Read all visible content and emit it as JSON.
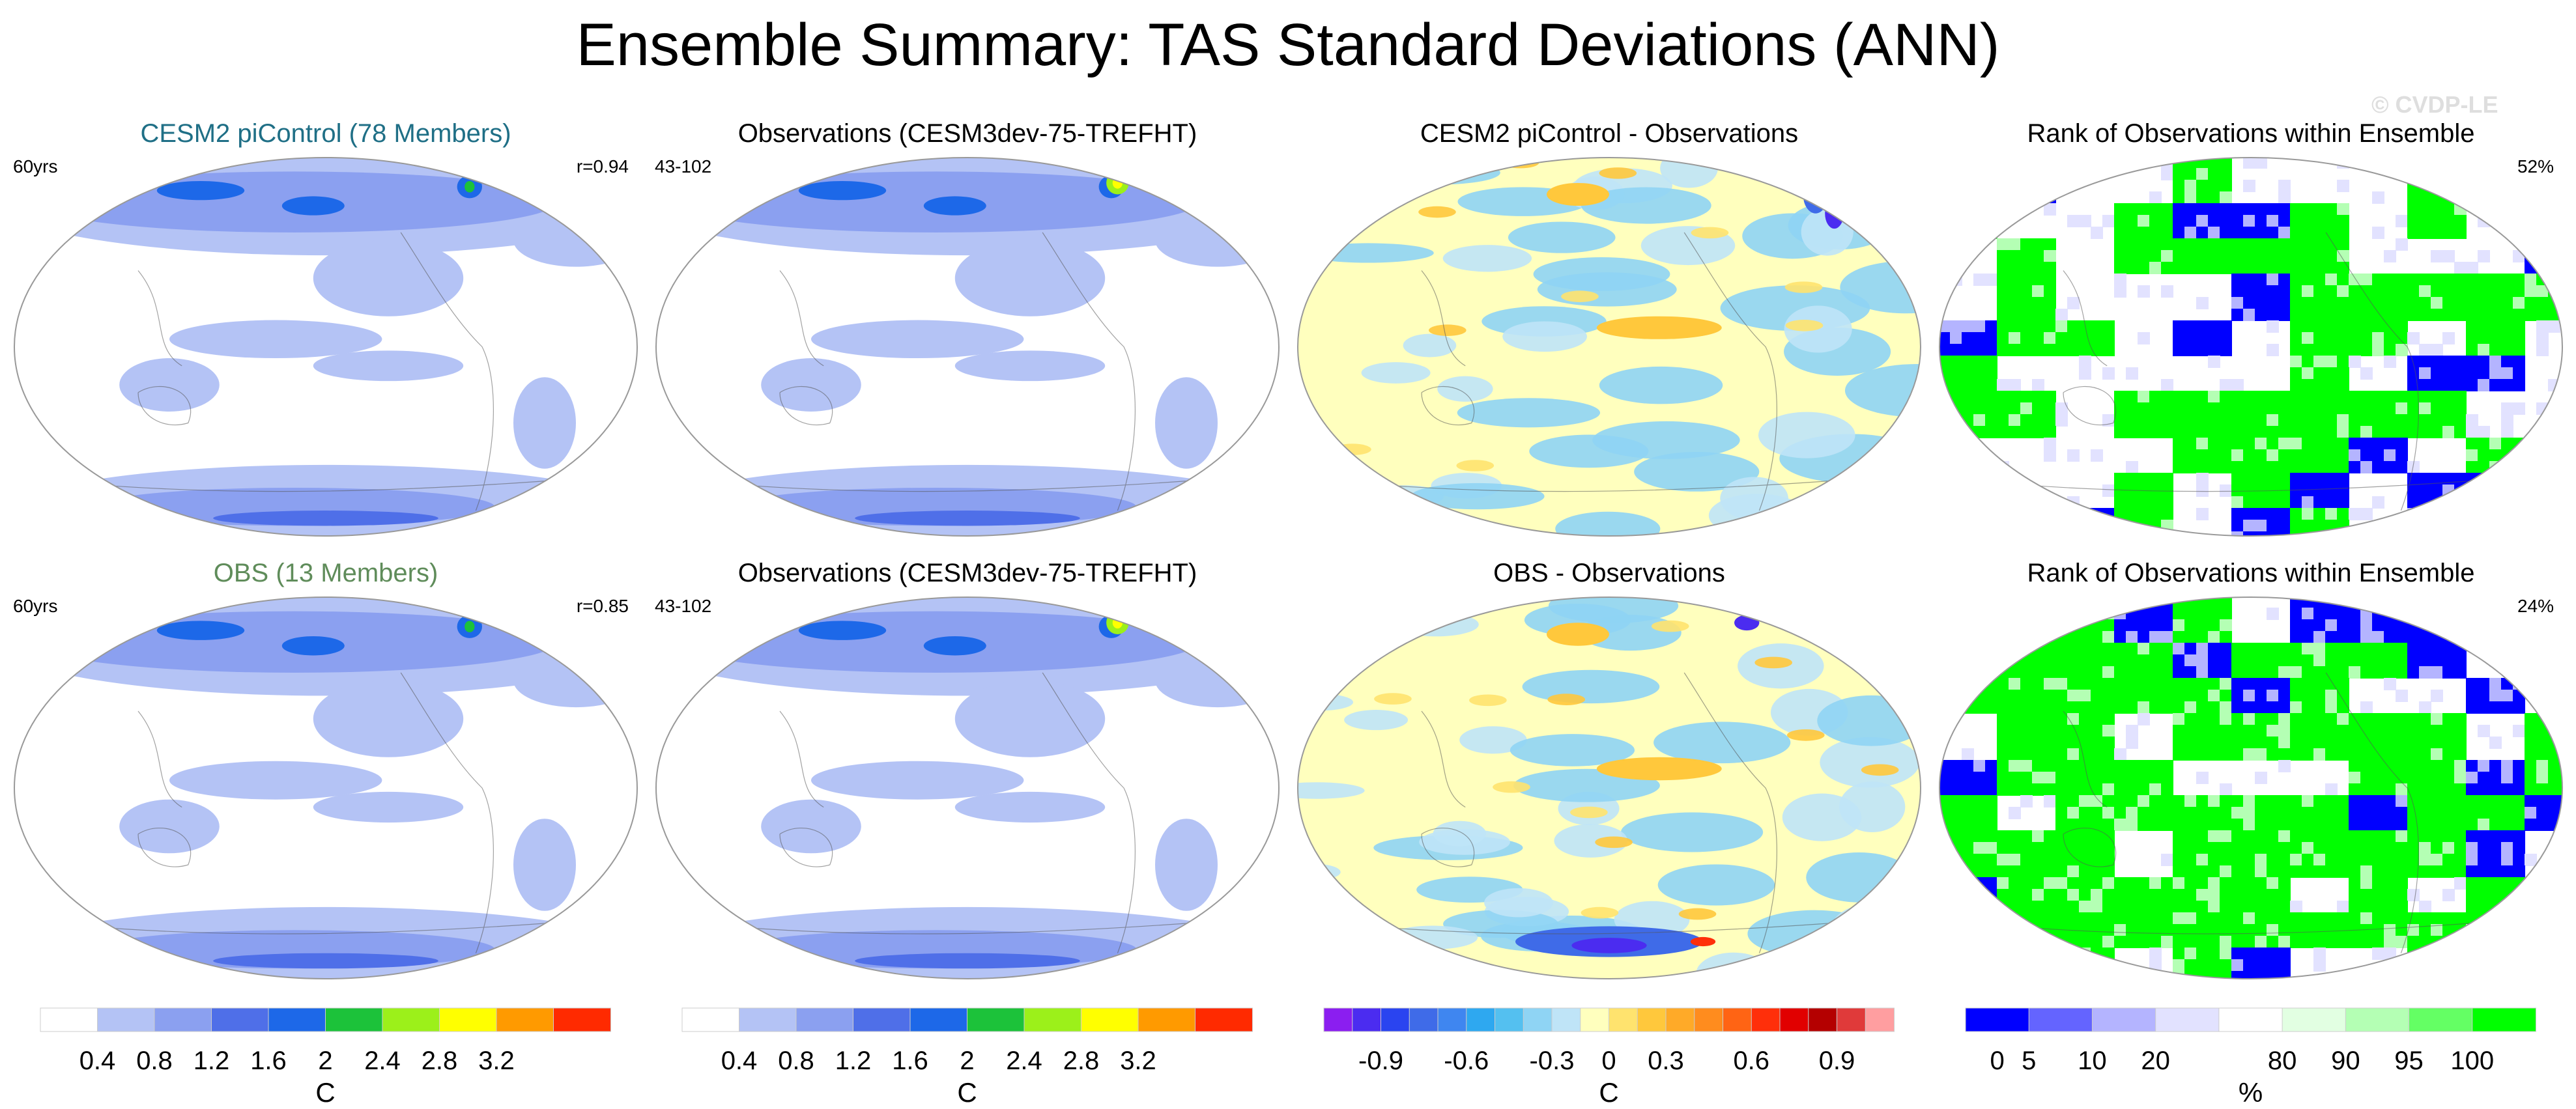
{
  "title": "Ensemble Summary: TAS Standard Deviations (ANN)",
  "watermark": "© CVDP-LE",
  "chart_data": [
    {
      "type": "heatmap",
      "panel": "row1-col1",
      "title": "CESM2 piControl (78 Members)",
      "title_color": "#1f6f86",
      "left_label": "60yrs",
      "right_label": "r=0.94",
      "colormap": "sd",
      "description_field": "tas standard deviation"
    },
    {
      "type": "heatmap",
      "panel": "row1-col2",
      "title": "Observations (CESM3dev-75-TREFHT)",
      "title_color": "#000000",
      "left_label": "43-102",
      "right_label": "",
      "colormap": "sd"
    },
    {
      "type": "heatmap",
      "panel": "row1-col3",
      "title": "CESM2 piControl - Observations",
      "title_color": "#000000",
      "left_label": "",
      "right_label": "",
      "colormap": "diff"
    },
    {
      "type": "heatmap",
      "panel": "row1-col4",
      "title": "Rank of Observations within Ensemble",
      "title_color": "#000000",
      "left_label": "",
      "right_label": "52%",
      "colormap": "rank"
    },
    {
      "type": "heatmap",
      "panel": "row2-col1",
      "title": "OBS (13 Members)",
      "title_color": "#5f8c5a",
      "left_label": "60yrs",
      "right_label": "r=0.85",
      "colormap": "sd"
    },
    {
      "type": "heatmap",
      "panel": "row2-col2",
      "title": "Observations (CESM3dev-75-TREFHT)",
      "title_color": "#000000",
      "left_label": "43-102",
      "right_label": "",
      "colormap": "sd"
    },
    {
      "type": "heatmap",
      "panel": "row2-col3",
      "title": "OBS - Observations",
      "title_color": "#000000",
      "left_label": "",
      "right_label": "",
      "colormap": "diff"
    },
    {
      "type": "heatmap",
      "panel": "row2-col4",
      "title": "Rank of Observations within Ensemble",
      "title_color": "#000000",
      "left_label": "",
      "right_label": "24%",
      "colormap": "rank"
    }
  ],
  "colorbars": {
    "sd": {
      "unit": "C",
      "colors": [
        "#ffffff",
        "#b4c3f5",
        "#8ba0f0",
        "#4f6fe8",
        "#1d68e8",
        "#1cc23a",
        "#9cf01a",
        "#ffff00",
        "#ff9a00",
        "#ff2a00"
      ],
      "labels": [
        "0.4",
        "0.8",
        "1.2",
        "1.6",
        "2",
        "2.4",
        "2.8",
        "3.2"
      ]
    },
    "diff": {
      "unit": "C",
      "colors": [
        "#8b1ef0",
        "#4b2cf0",
        "#2a44f0",
        "#3f6be8",
        "#3f86f0",
        "#2ea8f0",
        "#54c0f0",
        "#8fd4f4",
        "#bfe4f7",
        "#ffffbe",
        "#ffe36e",
        "#ffc83c",
        "#ffaa28",
        "#ff8c1e",
        "#ff6414",
        "#ff2f0a",
        "#e10000",
        "#b40000",
        "#e03a3a",
        "#ff9ea0"
      ],
      "labels": [
        "-0.9",
        "-0.6",
        "-0.3",
        "0",
        "0.3",
        "0.6",
        "0.9"
      ]
    },
    "rank": {
      "unit": "%",
      "colors": [
        "#0000ff",
        "#6464ff",
        "#b4b4ff",
        "#e2e2ff",
        "#ffffff",
        "#e2ffe2",
        "#b4ffb4",
        "#64ff64",
        "#00ff00"
      ],
      "labels": [
        "0",
        "5",
        "10",
        "20",
        "80",
        "90",
        "95",
        "100"
      ]
    }
  }
}
